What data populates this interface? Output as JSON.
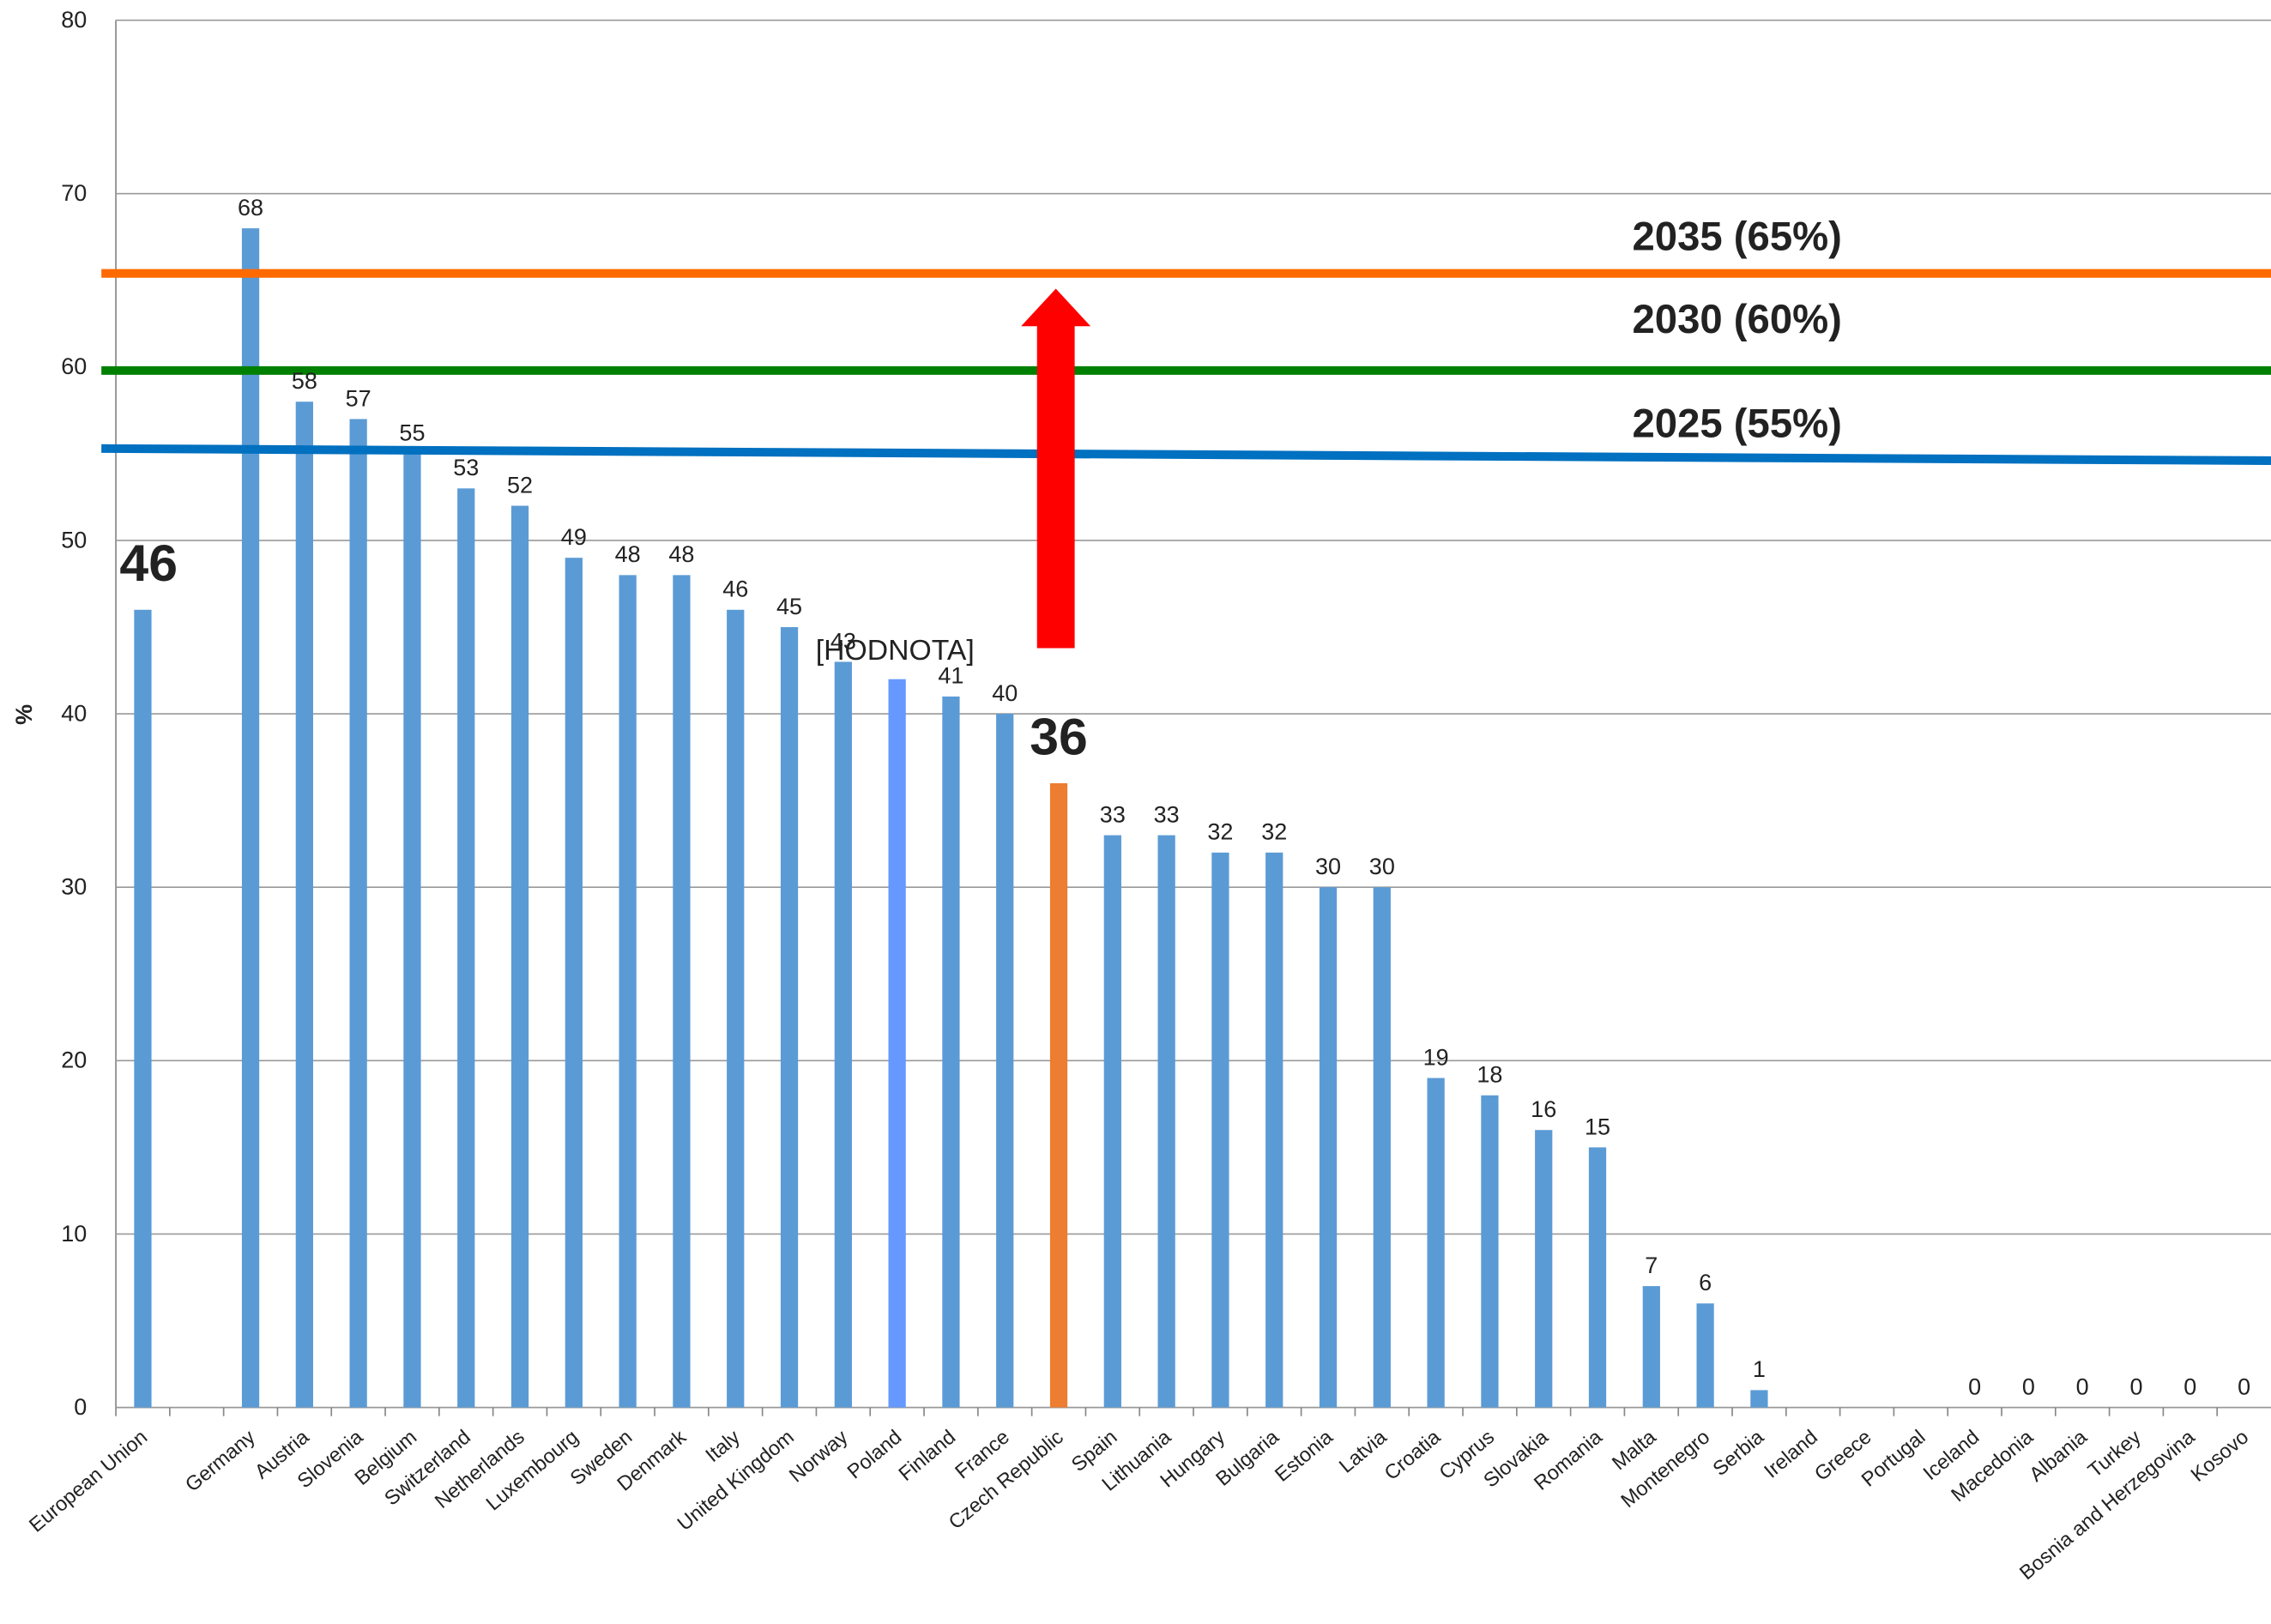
{
  "chart_data": {
    "type": "bar",
    "y_label": "%",
    "categories": [
      "European Union",
      null,
      "Germany",
      "Austria",
      "Slovenia",
      "Belgium",
      "Switzerland",
      "Netherlands",
      "Luxembourg",
      "Sweden",
      "Denmark",
      "Italy",
      "United Kingdom",
      "Norway",
      "Poland",
      "Finland",
      "France",
      "Czech Republic",
      "Spain",
      "Lithuania",
      "Hungary",
      "Bulgaria",
      "Estonia",
      "Latvia",
      "Croatia",
      "Cyprus",
      "Slovakia",
      "Romania",
      "Malta",
      "Montenegro",
      "Serbia",
      "Ireland",
      "Greece",
      "Portugal",
      "Iceland",
      "Macedonia",
      "Albania",
      "Turkey",
      "Bosnia and Herzegovina",
      "Kosovo"
    ],
    "values": [
      46,
      null,
      68,
      58,
      57,
      55,
      53,
      52,
      49,
      48,
      48,
      46,
      45,
      43,
      42,
      41,
      40,
      36,
      33,
      33,
      32,
      32,
      30,
      30,
      19,
      18,
      16,
      15,
      7,
      6,
      1,
      null,
      null,
      null,
      0,
      0,
      0,
      0,
      0,
      0
    ],
    "value_labels": [
      "46",
      null,
      "68",
      "58",
      "57",
      "55",
      "53",
      "52",
      "49",
      "48",
      "48",
      "46",
      "45",
      "43",
      null,
      "41",
      "40",
      "36",
      "33",
      "33",
      "32",
      "32",
      "30",
      "30",
      "19",
      "18",
      "16",
      "15",
      "7",
      "6",
      "1",
      null,
      null,
      null,
      "0",
      "0",
      "0",
      "0",
      "0",
      "0"
    ],
    "colors": [
      "#5b9bd5",
      null,
      "#5b9bd5",
      "#5b9bd5",
      "#5b9bd5",
      "#5b9bd5",
      "#5b9bd5",
      "#5b9bd5",
      "#5b9bd5",
      "#5b9bd5",
      "#5b9bd5",
      "#5b9bd5",
      "#5b9bd5",
      "#5b9bd5",
      "#6699ff",
      "#5b9bd5",
      "#5b9bd5",
      "#ed7d31",
      "#5b9bd5",
      "#5b9bd5",
      "#5b9bd5",
      "#5b9bd5",
      "#5b9bd5",
      "#5b9bd5",
      "#5b9bd5",
      "#5b9bd5",
      "#5b9bd5",
      "#5b9bd5",
      "#5b9bd5",
      "#5b9bd5",
      "#5b9bd5",
      null,
      null,
      null,
      "#5b9bd5",
      "#5b9bd5",
      "#5b9bd5",
      "#5b9bd5",
      "#5b9bd5",
      "#5b9bd5"
    ],
    "highlight_labels": [
      0,
      17
    ],
    "annotation": "[HODNOTA]",
    "ylim": [
      0,
      80
    ],
    "yticks": [
      0,
      10,
      20,
      30,
      40,
      50,
      60,
      70,
      80
    ],
    "grid": true,
    "reference_lines": [
      {
        "label": "2035 (65%)",
        "color": "#ff6a00",
        "values": [
          65.4,
          65.4
        ]
      },
      {
        "label": "2030 (60%)",
        "color": "#008000",
        "values": [
          59.8,
          59.8
        ]
      },
      {
        "label": "2025 (55%)",
        "color": "#0070c0",
        "values": [
          55.3,
          54.6
        ]
      }
    ]
  }
}
